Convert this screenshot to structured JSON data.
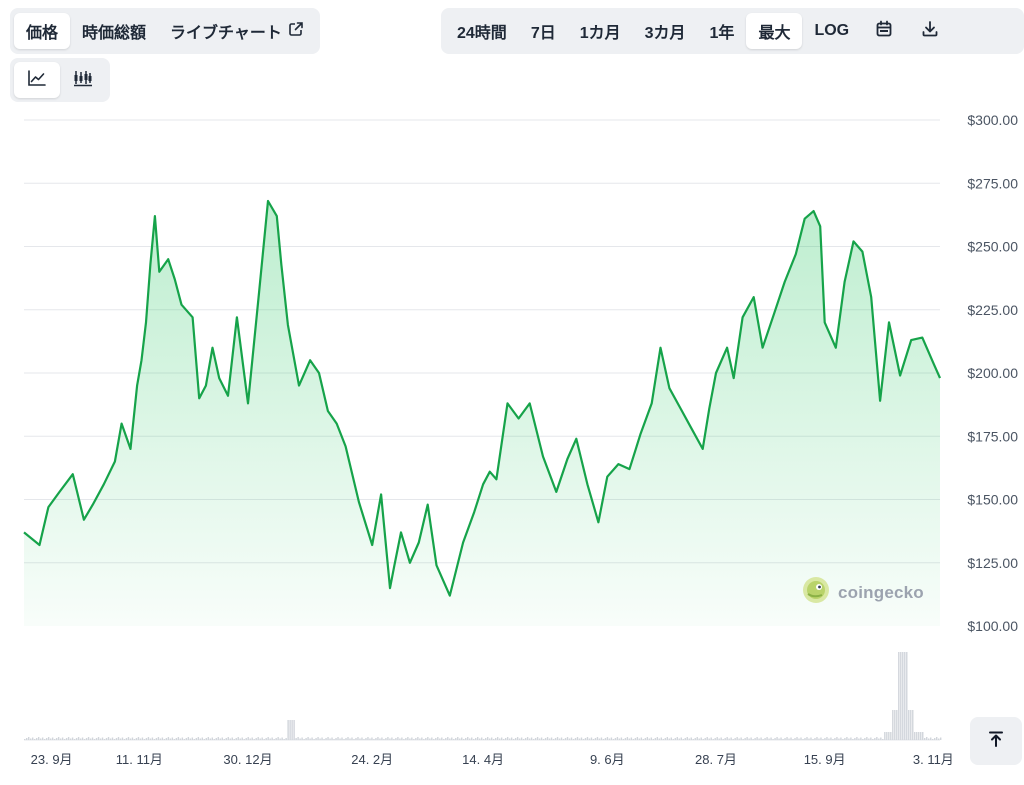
{
  "tabs": [
    {
      "label": "価格",
      "active": true
    },
    {
      "label": "時価総額",
      "active": false
    },
    {
      "label": "ライブチャート",
      "active": false,
      "external": true
    }
  ],
  "ranges": [
    {
      "label": "24時間",
      "active": false
    },
    {
      "label": "7日",
      "active": false
    },
    {
      "label": "1カ月",
      "active": false
    },
    {
      "label": "3カ月",
      "active": false
    },
    {
      "label": "1年",
      "active": false
    },
    {
      "label": "最大",
      "active": true
    },
    {
      "label": "LOG",
      "active": false
    }
  ],
  "toolbar_icons": [
    "calendar-icon",
    "download-icon"
  ],
  "chart_types": [
    {
      "name": "line-chart-icon",
      "active": true
    },
    {
      "name": "candlestick-chart-icon",
      "active": false
    }
  ],
  "watermark": {
    "text": "coingecko",
    "icon": "gecko-logo-icon"
  },
  "colors": {
    "line": "#16a34a",
    "fill": "#22c55e",
    "volume": "#d1d5db",
    "grid": "#e5e7eb"
  },
  "chart_data": {
    "type": "area",
    "y_tick_labels": [
      "$100.00",
      "$125.00",
      "$150.00",
      "$175.00",
      "$200.00",
      "$225.00",
      "$250.00",
      "$275.00",
      "$300.00"
    ],
    "ylim": [
      100,
      300
    ],
    "x_tick_labels": [
      "23. 9月",
      "11. 11月",
      "30. 12月",
      "24. 2月",
      "14. 4月",
      "9. 6月",
      "28. 7月",
      "15. 9月",
      "3. 11月"
    ],
    "x_ticks": [
      "2023-09-23",
      "2023-11-11",
      "2023-12-30",
      "2024-02-24",
      "2024-04-14",
      "2024-06-09",
      "2024-07-28",
      "2024-09-15",
      "2024-11-03"
    ],
    "grid": true,
    "series": [
      {
        "x": [
          "2023-09-20",
          "2023-09-27",
          "2023-10-01",
          "2023-10-06",
          "2023-10-12",
          "2023-10-17",
          "2023-10-21",
          "2023-10-26",
          "2023-10-31",
          "2023-11-03",
          "2023-11-07",
          "2023-11-10",
          "2023-11-12",
          "2023-11-14",
          "2023-11-16",
          "2023-11-18",
          "2023-11-20",
          "2023-11-24",
          "2023-11-27",
          "2023-11-30",
          "2023-12-05",
          "2023-12-08",
          "2023-12-11",
          "2023-12-14",
          "2023-12-17",
          "2023-12-21",
          "2023-12-25",
          "2023-12-30",
          "2024-01-04",
          "2024-01-08",
          "2024-01-12",
          "2024-01-14",
          "2024-01-17",
          "2024-01-22",
          "2024-01-27",
          "2024-01-31",
          "2024-02-04",
          "2024-02-08",
          "2024-02-12",
          "2024-02-18",
          "2024-02-24",
          "2024-02-28",
          "2024-03-03",
          "2024-03-05",
          "2024-03-08",
          "2024-03-12",
          "2024-03-16",
          "2024-03-20",
          "2024-03-24",
          "2024-03-30",
          "2024-04-05",
          "2024-04-10",
          "2024-04-14",
          "2024-04-17",
          "2024-04-20",
          "2024-04-25",
          "2024-04-30",
          "2024-05-05",
          "2024-05-11",
          "2024-05-17",
          "2024-05-22",
          "2024-05-26",
          "2024-05-31",
          "2024-06-05",
          "2024-06-09",
          "2024-06-14",
          "2024-06-19",
          "2024-06-24",
          "2024-06-29",
          "2024-07-03",
          "2024-07-07",
          "2024-07-12",
          "2024-07-17",
          "2024-07-22",
          "2024-07-25",
          "2024-07-28",
          "2024-08-02",
          "2024-08-05",
          "2024-08-09",
          "2024-08-14",
          "2024-08-18",
          "2024-08-23",
          "2024-08-28",
          "2024-09-02",
          "2024-09-06",
          "2024-09-10",
          "2024-09-13",
          "2024-09-15",
          "2024-09-20",
          "2024-09-24",
          "2024-09-28",
          "2024-10-02",
          "2024-10-06",
          "2024-10-10",
          "2024-10-14",
          "2024-10-19",
          "2024-10-24",
          "2024-10-29",
          "2024-11-03",
          "2024-11-06"
        ],
        "y": [
          137,
          132,
          147,
          153,
          160,
          142,
          148,
          156,
          165,
          180,
          170,
          195,
          205,
          220,
          243,
          262,
          240,
          245,
          237,
          227,
          222,
          190,
          195,
          210,
          198,
          191,
          222,
          188,
          232,
          268,
          262,
          243,
          219,
          195,
          205,
          200,
          185,
          180,
          171,
          149,
          132,
          152,
          115,
          124,
          137,
          125,
          133,
          148,
          124,
          112,
          133,
          145,
          156,
          161,
          158,
          188,
          182,
          188,
          167,
          153,
          166,
          174,
          156,
          141,
          159,
          164,
          162,
          176,
          188,
          210,
          194,
          186,
          178,
          170,
          186,
          200,
          210,
          198,
          222,
          230,
          210,
          223,
          236,
          247,
          261,
          264,
          258,
          220,
          210,
          236,
          252,
          248,
          230,
          189,
          220,
          199,
          213,
          214,
          204,
          198
        ]
      }
    ],
    "volume_note": "volume bars along bottom, spike near 2024-10-20"
  }
}
